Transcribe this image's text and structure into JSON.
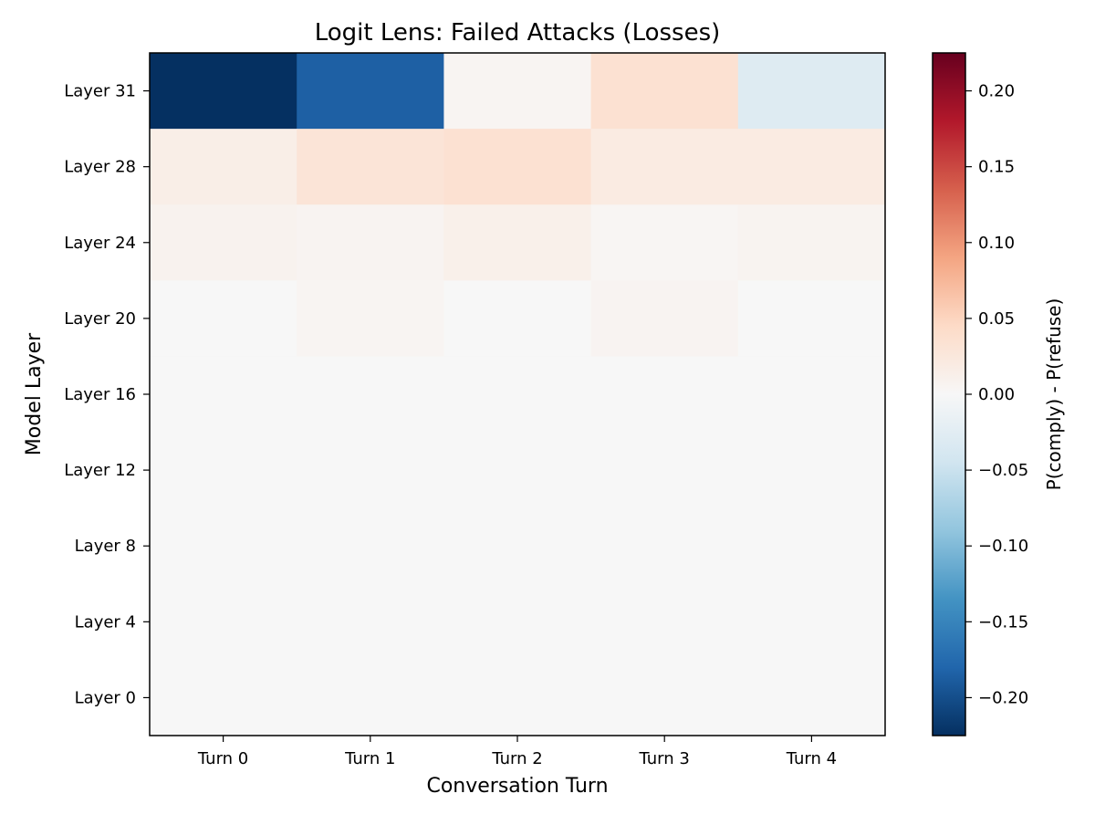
{
  "chart_data": {
    "type": "heatmap",
    "title": "Logit Lens: Failed Attacks (Losses)",
    "xlabel": "Conversation Turn",
    "ylabel": "Model Layer",
    "x_categories": [
      "Turn 0",
      "Turn 1",
      "Turn 2",
      "Turn 3",
      "Turn 4"
    ],
    "y_categories": [
      "Layer 31",
      "Layer 28",
      "Layer 24",
      "Layer 20",
      "Layer 16",
      "Layer 12",
      "Layer 8",
      "Layer 4",
      "Layer 0"
    ],
    "values": [
      [
        -0.225,
        -0.185,
        0.005,
        0.035,
        -0.03
      ],
      [
        0.015,
        0.03,
        0.035,
        0.02,
        0.02
      ],
      [
        0.008,
        0.006,
        0.012,
        0.004,
        0.007
      ],
      [
        0.0,
        0.005,
        0.0,
        0.006,
        0.0
      ],
      [
        0.0,
        0.0,
        0.0,
        0.0,
        0.0
      ],
      [
        0.0,
        0.0,
        0.0,
        0.0,
        0.0
      ],
      [
        0.0,
        0.0,
        0.0,
        0.0,
        0.0
      ],
      [
        0.0,
        0.0,
        0.0,
        0.0,
        0.0
      ],
      [
        0.0,
        0.0,
        0.0,
        0.0,
        0.0
      ]
    ],
    "colorbar": {
      "label": "P(comply) - P(refuse)",
      "colormap": "RdBu_r",
      "vmin": -0.225,
      "vmax": 0.225,
      "ticks": [
        0.2,
        0.15,
        0.1,
        0.05,
        0.0,
        -0.05,
        -0.1,
        -0.15,
        -0.2
      ],
      "tick_labels": [
        "0.20",
        "0.15",
        "0.10",
        "0.05",
        "0.00",
        "−0.05",
        "−0.10",
        "−0.15",
        "−0.20"
      ]
    }
  }
}
